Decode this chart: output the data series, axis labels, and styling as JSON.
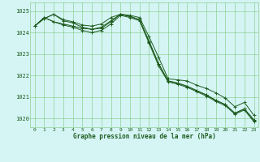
{
  "title": "Graphe pression niveau de la mer (hPa)",
  "bg_color": "#d5f5f5",
  "plot_bg_color": "#d5f5f5",
  "grid_color": "#7ac87a",
  "line_color": "#1e5c1e",
  "tick_color": "#1e5c1e",
  "xlim": [
    -0.5,
    23.5
  ],
  "ylim": [
    1019.6,
    1025.4
  ],
  "yticks": [
    1020,
    1021,
    1022,
    1023,
    1024,
    1025
  ],
  "xticks": [
    0,
    1,
    2,
    3,
    4,
    5,
    6,
    7,
    8,
    9,
    10,
    11,
    12,
    13,
    14,
    15,
    16,
    17,
    18,
    19,
    20,
    21,
    22,
    23
  ],
  "xtick_labels": [
    "0",
    "1",
    "2",
    "3",
    "4",
    "5",
    "6",
    "7",
    "8",
    "9",
    "10",
    "11",
    "12",
    "13",
    "14",
    "15",
    "16",
    "17",
    "18",
    "19",
    "20",
    "21",
    "22",
    "23"
  ],
  "series": [
    [
      1024.3,
      1024.65,
      1024.85,
      1024.6,
      1024.5,
      1024.35,
      1024.3,
      1024.4,
      1024.7,
      1024.85,
      1024.8,
      1024.7,
      1023.8,
      1022.85,
      1021.85,
      1021.8,
      1021.75,
      1021.55,
      1021.4,
      1021.2,
      1020.95,
      1020.55,
      1020.75,
      1020.15
    ],
    [
      1024.3,
      1024.65,
      1024.85,
      1024.55,
      1024.45,
      1024.25,
      1024.15,
      1024.2,
      1024.5,
      1024.85,
      1024.75,
      1024.6,
      1023.55,
      1022.55,
      1021.75,
      1021.65,
      1021.5,
      1021.3,
      1021.1,
      1020.85,
      1020.65,
      1020.25,
      1020.45,
      1019.9
    ],
    [
      1024.3,
      1024.7,
      1024.5,
      1024.4,
      1024.3,
      1024.2,
      1024.15,
      1024.25,
      1024.55,
      1024.85,
      1024.75,
      1024.6,
      1023.6,
      1022.55,
      1021.75,
      1021.65,
      1021.5,
      1021.3,
      1021.1,
      1020.85,
      1020.65,
      1020.25,
      1020.45,
      1019.95
    ],
    [
      1024.3,
      1024.7,
      1024.5,
      1024.35,
      1024.25,
      1024.1,
      1024.0,
      1024.1,
      1024.4,
      1024.8,
      1024.7,
      1024.55,
      1023.5,
      1022.45,
      1021.7,
      1021.6,
      1021.45,
      1021.25,
      1021.05,
      1020.8,
      1020.6,
      1020.2,
      1020.4,
      1019.85
    ]
  ]
}
